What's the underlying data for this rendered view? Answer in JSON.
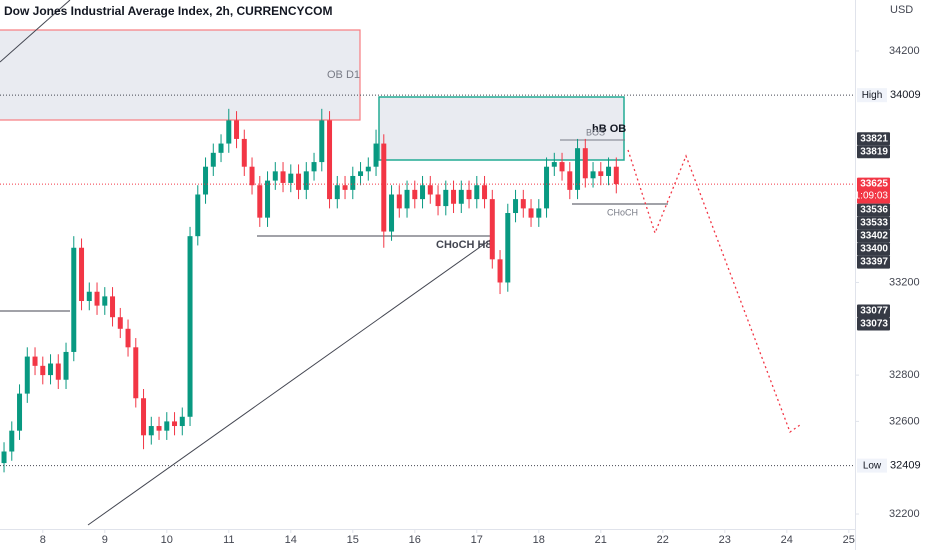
{
  "chart_data": {
    "type": "candlestick",
    "title": "Dow Jones Industrial Average Index, 2h, CURRENCYCOM",
    "currency": "USD",
    "up_color": "#089981",
    "down_color": "#f23645",
    "grid": false,
    "x": [
      -0.625,
      -0.5,
      -0.375,
      -0.25,
      -0.125,
      0,
      0.125,
      0.25,
      0.375,
      0.5,
      0.625,
      0.75,
      0.875,
      1,
      1.125,
      1.25,
      1.375,
      1.5,
      1.625,
      1.75,
      1.875,
      2,
      2.125,
      2.25,
      2.375,
      2.5,
      2.625,
      2.75,
      2.875,
      3,
      3.125,
      3.25,
      3.375,
      3.5,
      3.625,
      3.75,
      3.875,
      4,
      4.125,
      4.25,
      4.375,
      4.5,
      4.625,
      4.75,
      4.875,
      5,
      5.125,
      5.25,
      5.375,
      5.5,
      5.625,
      5.75,
      5.875,
      6,
      6.125,
      6.25,
      6.375,
      6.5,
      6.625,
      6.75,
      6.875,
      7,
      7.125,
      7.25,
      7.375,
      7.5,
      7.625,
      7.75,
      7.875,
      8,
      8.125,
      8.25,
      8.375,
      8.5,
      8.625,
      8.75,
      8.875,
      9,
      9.125,
      9.25
    ],
    "open": [
      32420,
      32470,
      32560,
      32720,
      32880,
      32840,
      32800,
      32850,
      32780,
      32900,
      33350,
      33120,
      33160,
      33100,
      33140,
      33050,
      33000,
      32920,
      32700,
      32540,
      32580,
      32560,
      32600,
      32580,
      32620,
      33400,
      33580,
      33700,
      33760,
      33800,
      33900,
      33820,
      33700,
      33620,
      33480,
      33640,
      33680,
      33630,
      33670,
      33600,
      33680,
      33720,
      33900,
      33560,
      33620,
      33600,
      33660,
      33680,
      33700,
      33800,
      33420,
      33580,
      33520,
      33600,
      33560,
      33620,
      33580,
      33530,
      33600,
      33540,
      33600,
      33560,
      33620,
      33560,
      33300,
      33200,
      33500,
      33560,
      33520,
      33480,
      33520,
      33700,
      33720,
      33680,
      33600,
      33780,
      33650,
      33680,
      33660,
      33700
    ],
    "high": [
      32510,
      32600,
      32760,
      32920,
      32920,
      32880,
      32890,
      32890,
      32940,
      33400,
      33390,
      33200,
      33200,
      33180,
      33180,
      33090,
      33040,
      32960,
      32740,
      32620,
      32620,
      32640,
      32640,
      32660,
      33440,
      33620,
      33740,
      33800,
      33840,
      33950,
      33940,
      33860,
      33740,
      33660,
      33680,
      33720,
      33720,
      33710,
      33710,
      33720,
      33760,
      33950,
      33940,
      33660,
      33660,
      33700,
      33720,
      33740,
      33860,
      33840,
      33620,
      33620,
      33640,
      33640,
      33660,
      33660,
      33620,
      33640,
      33640,
      33640,
      33640,
      33660,
      33660,
      33600,
      33340,
      33540,
      33600,
      33600,
      33560,
      33560,
      33740,
      33760,
      33760,
      33720,
      33820,
      33820,
      33720,
      33720,
      33740,
      33740
    ],
    "low": [
      32380,
      32430,
      32520,
      32680,
      32800,
      32760,
      32760,
      32740,
      32740,
      32860,
      33080,
      33080,
      33060,
      33060,
      33010,
      32960,
      32880,
      32660,
      32480,
      32500,
      32520,
      32520,
      32540,
      32540,
      32580,
      33360,
      33540,
      33660,
      33720,
      33760,
      33780,
      33660,
      33580,
      33440,
      33440,
      33600,
      33590,
      33590,
      33560,
      33560,
      33640,
      33680,
      33520,
      33520,
      33560,
      33560,
      33620,
      33640,
      33660,
      33350,
      33380,
      33480,
      33480,
      33520,
      33520,
      33540,
      33490,
      33490,
      33500,
      33500,
      33520,
      33520,
      33520,
      33260,
      33150,
      33160,
      33460,
      33480,
      33440,
      33440,
      33480,
      33660,
      33640,
      33560,
      33560,
      33610,
      33610,
      33620,
      33620,
      33585
    ],
    "close": [
      32470,
      32560,
      32720,
      32880,
      32840,
      32800,
      32850,
      32780,
      32900,
      33350,
      33120,
      33160,
      33100,
      33140,
      33050,
      33000,
      32920,
      32700,
      32540,
      32580,
      32560,
      32600,
      32580,
      32620,
      33400,
      33580,
      33700,
      33760,
      33800,
      33900,
      33820,
      33700,
      33620,
      33480,
      33640,
      33680,
      33630,
      33670,
      33600,
      33680,
      33720,
      33900,
      33560,
      33620,
      33600,
      33660,
      33680,
      33700,
      33800,
      33420,
      33580,
      33520,
      33600,
      33560,
      33620,
      33580,
      33530,
      33600,
      33540,
      33600,
      33560,
      33620,
      33560,
      33300,
      33200,
      33500,
      33560,
      33520,
      33480,
      33520,
      33700,
      33720,
      33680,
      33600,
      33780,
      33650,
      33680,
      33660,
      33700,
      33625
    ],
    "xlim": [
      -0.69,
      13.1
    ],
    "xticks": [
      {
        "value": 0,
        "label": "8"
      },
      {
        "value": 1,
        "label": "9"
      },
      {
        "value": 2,
        "label": "10"
      },
      {
        "value": 3,
        "label": "11"
      },
      {
        "value": 4,
        "label": "14"
      },
      {
        "value": 5,
        "label": "15"
      },
      {
        "value": 6,
        "label": "16"
      },
      {
        "value": 7,
        "label": "17"
      },
      {
        "value": 8,
        "label": "18"
      },
      {
        "value": 9,
        "label": "21"
      },
      {
        "value": 10,
        "label": "22"
      },
      {
        "value": 11,
        "label": "23"
      },
      {
        "value": 12,
        "label": "24"
      },
      {
        "value": 13,
        "label": "25"
      }
    ],
    "ylim": [
      32131,
      34420
    ],
    "yticks": [
      34200,
      33200,
      32800,
      32600,
      32200
    ],
    "high_line": {
      "label": "High",
      "value": 34009
    },
    "low_line": {
      "label": "Low",
      "value": 32409
    },
    "current_price": {
      "value": 33625,
      "countdown": "01:09:03"
    },
    "price_labels": [
      33821,
      33819,
      33536,
      33533,
      33402,
      33400,
      33397,
      33077,
      33073
    ],
    "annotations": [
      "OB D1",
      "hB OB",
      "BOS",
      "CHoCH",
      "CHoCH H8"
    ]
  }
}
